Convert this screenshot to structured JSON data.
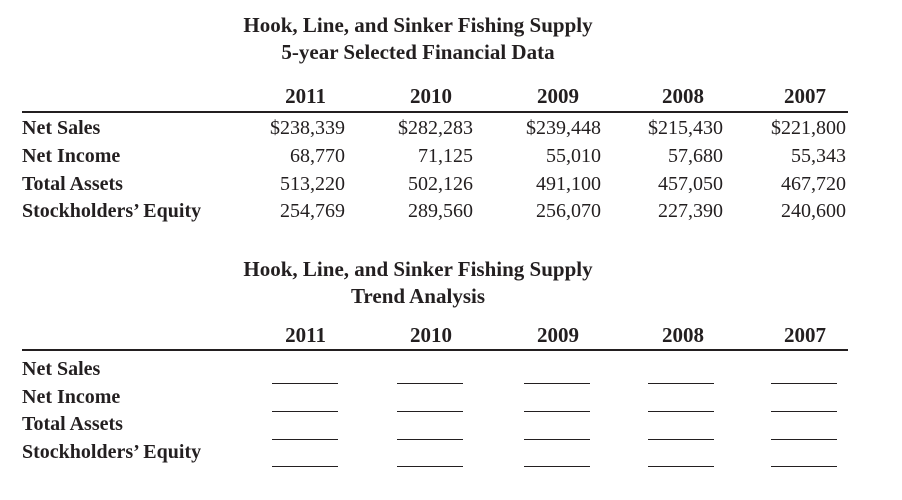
{
  "table1": {
    "title_line1": "Hook, Line, and Sinker Fishing Supply",
    "title_line2": "5-year Selected Financial Data",
    "years": [
      "2011",
      "2010",
      "2009",
      "2008",
      "2007"
    ],
    "rows": [
      {
        "label": "Net Sales",
        "values": [
          "$238,339",
          "$282,283",
          "$239,448",
          "$215,430",
          "$221,800"
        ]
      },
      {
        "label": "Net Income",
        "values": [
          "68,770",
          "71,125",
          "55,010",
          "57,680",
          "55,343"
        ]
      },
      {
        "label": "Total Assets",
        "values": [
          "513,220",
          "502,126",
          "491,100",
          "457,050",
          "467,720"
        ]
      },
      {
        "label": "Stockholders’ Equity",
        "values": [
          "254,769",
          "289,560",
          "256,070",
          "227,390",
          "240,600"
        ]
      }
    ]
  },
  "table2": {
    "title_line1": "Hook, Line, and Sinker Fishing Supply",
    "title_line2": "Trend Analysis",
    "years": [
      "2011",
      "2010",
      "2009",
      "2008",
      "2007"
    ],
    "rows": [
      {
        "label": "Net Sales"
      },
      {
        "label": "Net Income"
      },
      {
        "label": "Total Assets"
      },
      {
        "label": "Stockholders’ Equity"
      }
    ]
  }
}
